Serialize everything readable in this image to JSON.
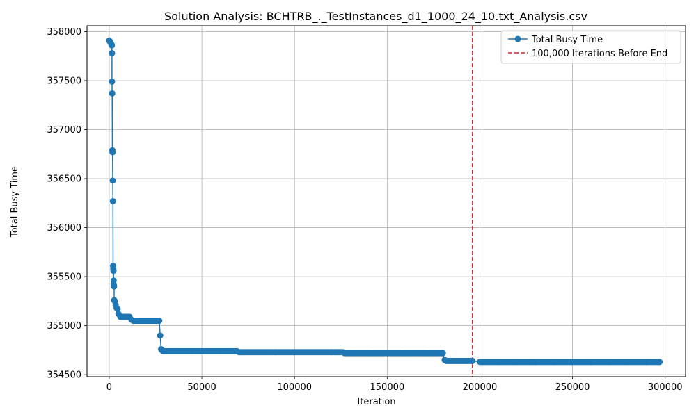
{
  "chart_data": {
    "type": "line",
    "title": "Solution Analysis: BCHTRB_._TestInstances_d1_1000_24_10.txt_Analysis.csv",
    "xlabel": "Iteration",
    "ylabel": "Total Busy Time",
    "xlim": [
      -12000,
      311000
    ],
    "ylim": [
      354480,
      358060
    ],
    "xticks": [
      0,
      50000,
      100000,
      150000,
      200000,
      250000,
      300000
    ],
    "xtick_labels": [
      "0",
      "50000",
      "100000",
      "150000",
      "200000",
      "250000",
      "300000"
    ],
    "yticks": [
      354500,
      355000,
      355500,
      356000,
      356500,
      357000,
      357500,
      358000
    ],
    "ytick_labels": [
      "354500",
      "355000",
      "355500",
      "356000",
      "356500",
      "357000",
      "357500",
      "358000"
    ],
    "grid": true,
    "legend_position": "top-right",
    "series": [
      {
        "name": "Total Busy Time",
        "color": "#1f77b4",
        "marker": "circle",
        "x": [
          0,
          300,
          600,
          900,
          1200,
          1400,
          1500,
          1500,
          1600,
          1700,
          1800,
          1900,
          2000,
          2100,
          2200,
          2300,
          2400,
          2500,
          2600,
          2700,
          3000,
          3500,
          4000,
          4500,
          5000,
          6000,
          7000,
          8000,
          9000,
          10000,
          11000,
          12000,
          13000,
          15000,
          18000,
          21000,
          24000,
          27000,
          27500,
          28000,
          28500,
          29000,
          29500,
          30000,
          35000,
          40000,
          45000,
          50000,
          55000,
          60000,
          65000,
          69000,
          70000,
          80000,
          90000,
          100000,
          110000,
          120000,
          126000,
          127000,
          140000,
          150000,
          160000,
          170000,
          180000,
          181000,
          182000,
          190000,
          196000,
          200000,
          210000,
          220000,
          230000,
          240000,
          250000,
          260000,
          270000,
          280000,
          290000,
          297000
        ],
        "y": [
          357910,
          357900,
          357890,
          357880,
          357870,
          357860,
          357780,
          357490,
          357370,
          356790,
          356770,
          356480,
          356270,
          355610,
          355580,
          355560,
          355460,
          355420,
          355400,
          355260,
          355250,
          355210,
          355180,
          355170,
          355120,
          355090,
          355090,
          355090,
          355090,
          355090,
          355090,
          355060,
          355050,
          355050,
          355050,
          355050,
          355050,
          355050,
          354900,
          354760,
          354750,
          354740,
          354740,
          354740,
          354740,
          354740,
          354740,
          354740,
          354740,
          354740,
          354740,
          354740,
          354730,
          354730,
          354730,
          354730,
          354730,
          354730,
          354730,
          354720,
          354720,
          354720,
          354720,
          354720,
          354720,
          354650,
          354640,
          354640,
          354640,
          354630,
          354630,
          354630,
          354630,
          354630,
          354630,
          354630,
          354630,
          354630,
          354630,
          354630
        ]
      }
    ],
    "reference_line": {
      "type": "vertical",
      "x": 196000,
      "color": "#d62728",
      "style": "dashed",
      "label": "100,000 Iterations Before End"
    }
  }
}
